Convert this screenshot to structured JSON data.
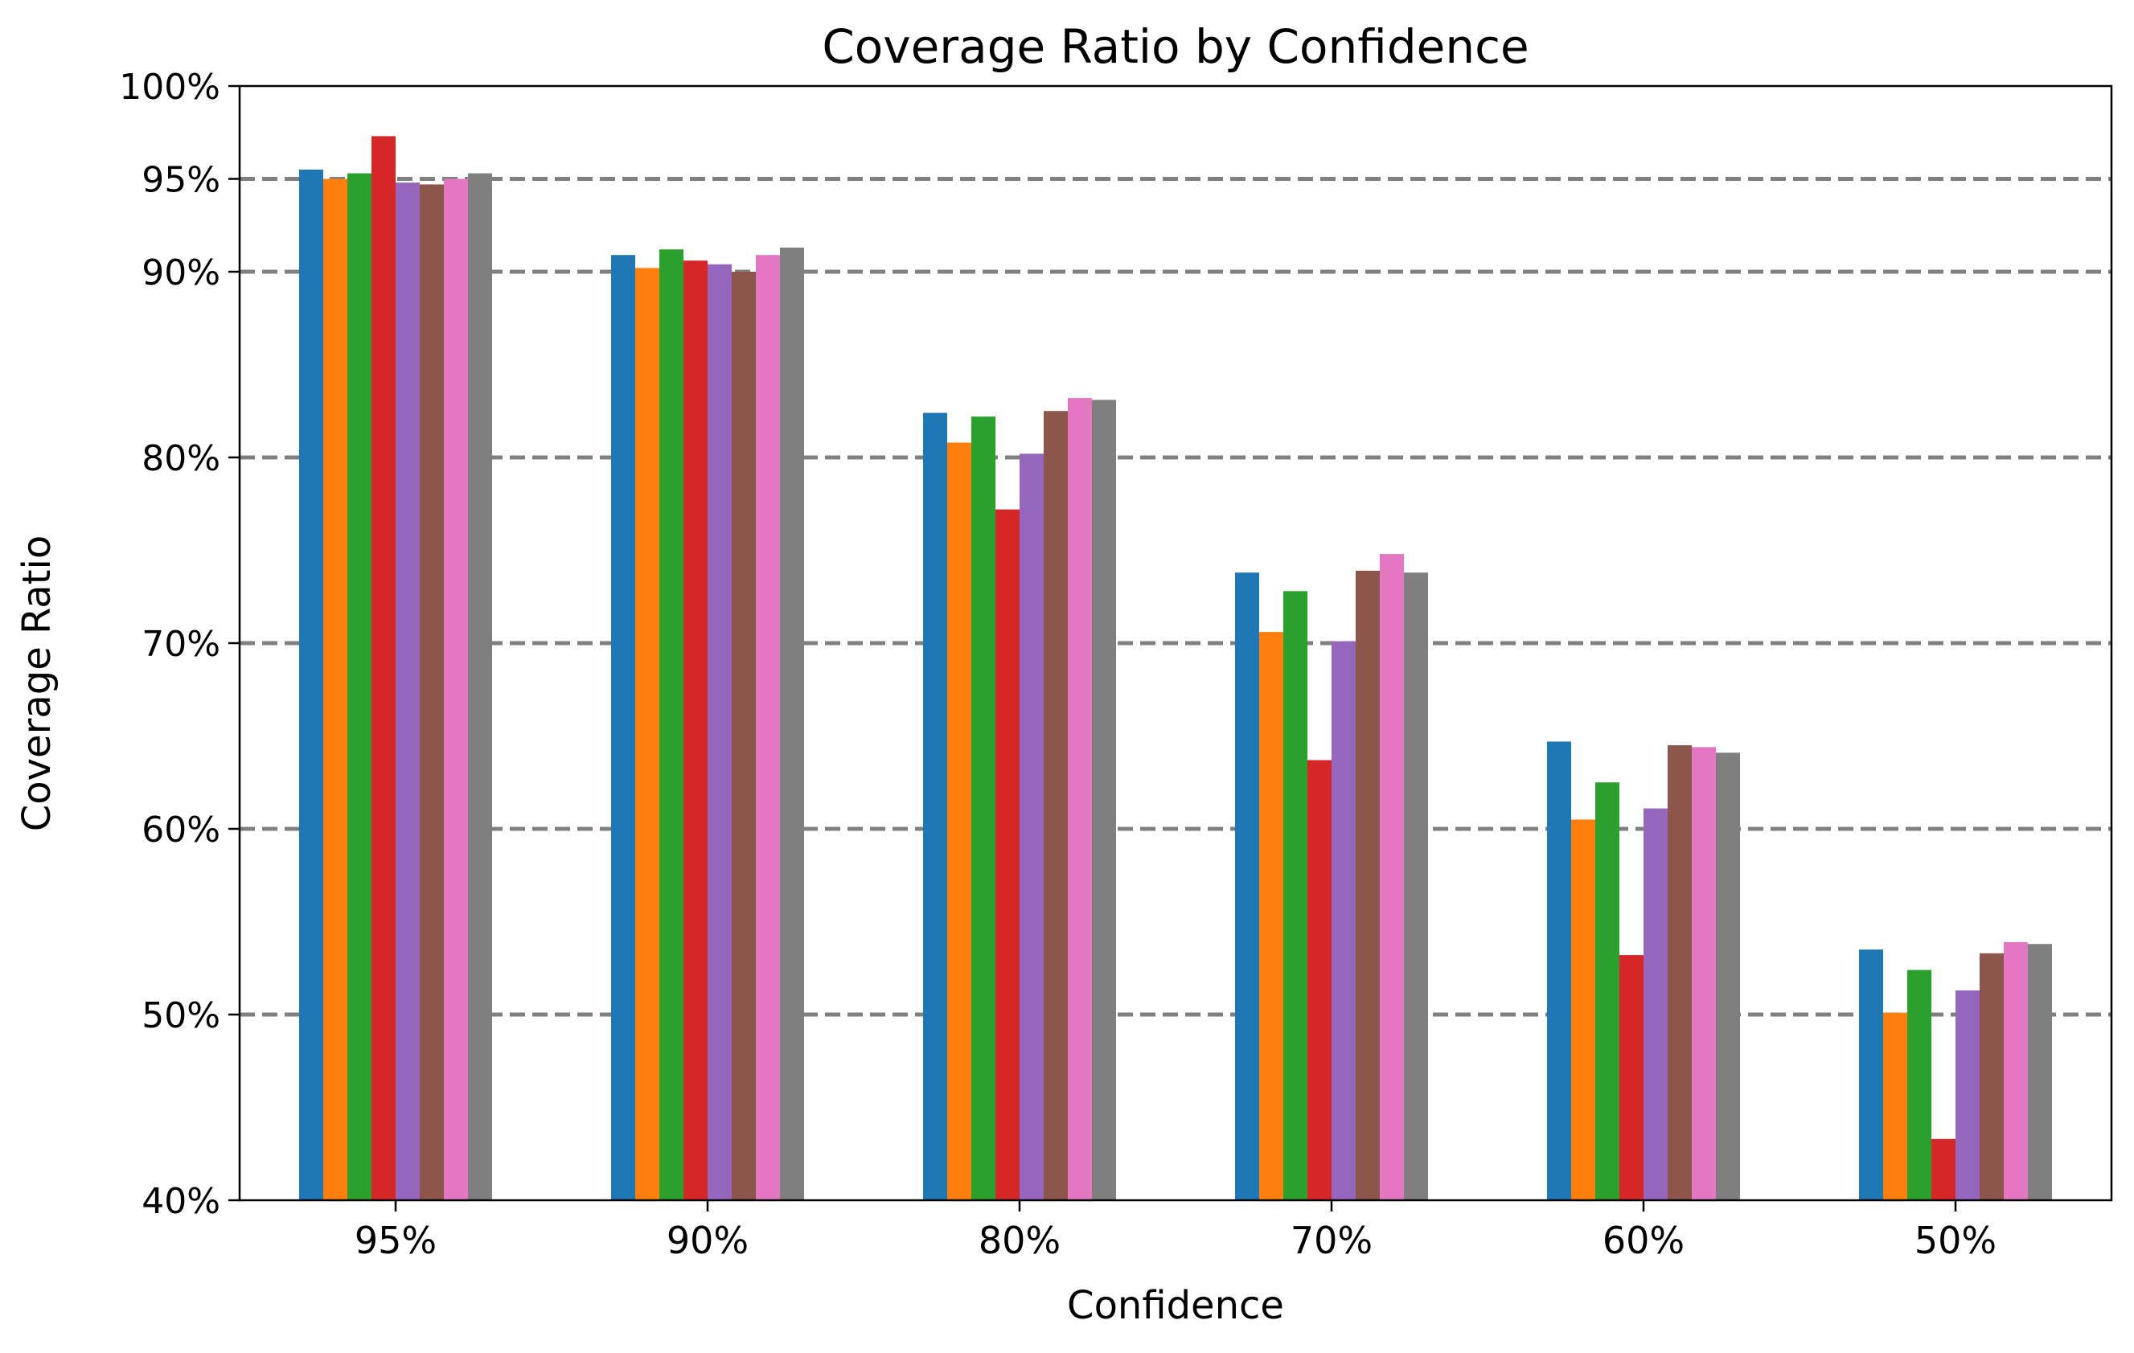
{
  "chart_data": {
    "type": "bar",
    "title": "Coverage Ratio by Confidence",
    "xlabel": "Confidence",
    "ylabel": "Coverage Ratio",
    "categories": [
      "95%",
      "90%",
      "80%",
      "70%",
      "60%",
      "50%"
    ],
    "ylim": [
      0.4,
      1.0
    ],
    "yticks": [
      {
        "value": 0.4,
        "label": "40%"
      },
      {
        "value": 0.5,
        "label": "50%"
      },
      {
        "value": 0.6,
        "label": "60%"
      },
      {
        "value": 0.7,
        "label": "70%"
      },
      {
        "value": 0.8,
        "label": "80%"
      },
      {
        "value": 0.9,
        "label": "90%"
      },
      {
        "value": 0.95,
        "label": "95%"
      },
      {
        "value": 1.0,
        "label": "100%"
      }
    ],
    "reference_lines": [
      0.5,
      0.6,
      0.7,
      0.8,
      0.9,
      0.95
    ],
    "reference_line_color": "#808080",
    "legend": "none",
    "series": [
      {
        "color": "#1f77b4",
        "values": [
          0.955,
          0.909,
          0.824,
          0.738,
          0.647,
          0.535
        ]
      },
      {
        "color": "#ff7f0e",
        "values": [
          0.95,
          0.902,
          0.808,
          0.706,
          0.605,
          0.501
        ]
      },
      {
        "color": "#2ca02c",
        "values": [
          0.953,
          0.912,
          0.822,
          0.728,
          0.625,
          0.524
        ]
      },
      {
        "color": "#d62728",
        "values": [
          0.973,
          0.906,
          0.772,
          0.637,
          0.532,
          0.433
        ]
      },
      {
        "color": "#9467bd",
        "values": [
          0.948,
          0.904,
          0.802,
          0.701,
          0.611,
          0.513
        ]
      },
      {
        "color": "#8c564b",
        "values": [
          0.947,
          0.9,
          0.825,
          0.739,
          0.645,
          0.533
        ]
      },
      {
        "color": "#e377c2",
        "values": [
          0.95,
          0.909,
          0.832,
          0.748,
          0.644,
          0.539
        ]
      },
      {
        "color": "#7f7f7f",
        "values": [
          0.953,
          0.913,
          0.831,
          0.738,
          0.641,
          0.538
        ]
      }
    ]
  }
}
